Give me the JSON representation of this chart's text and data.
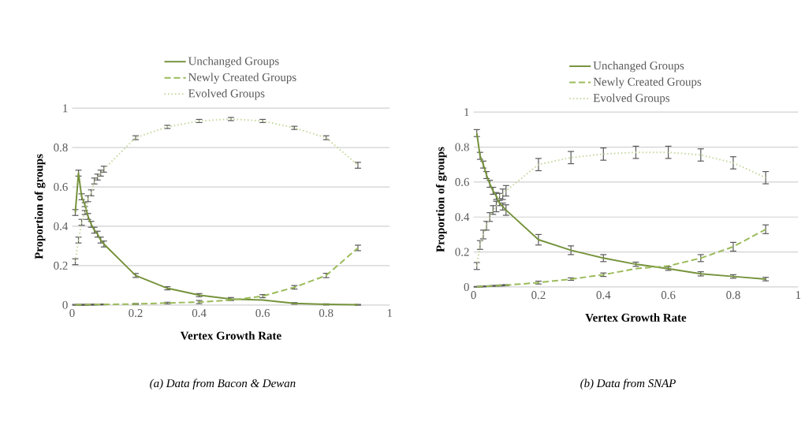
{
  "chart_data": [
    {
      "type": "line",
      "xlabel": "Vertex Growth Rate",
      "ylabel": "Proportion of groups",
      "annotations": [
        "(a) Data from Bacon & Dewan"
      ],
      "x": [
        0.01,
        0.02,
        0.03,
        0.04,
        0.05,
        0.06,
        0.07,
        0.08,
        0.09,
        0.1,
        0.2,
        0.3,
        0.4,
        0.5,
        0.6,
        0.7,
        0.8,
        0.9
      ],
      "series": [
        {
          "name": "Unchanged Groups",
          "color": "#76933c",
          "line_style": "solid",
          "values": [
            0.47,
            0.67,
            0.55,
            0.51,
            0.45,
            0.41,
            0.38,
            0.36,
            0.33,
            0.31,
            0.15,
            0.085,
            0.05,
            0.03,
            0.025,
            0.008,
            0.003,
            0.001
          ],
          "errors": [
            0.015,
            0.015,
            0.015,
            0.01,
            0.015,
            0.015,
            0.015,
            0.015,
            0.015,
            0.015,
            0.01,
            0.008,
            0.008,
            0.008,
            null,
            0.004,
            0.003,
            0.002
          ]
        },
        {
          "name": "Newly Created Groups",
          "color": "#9bbb59",
          "line_style": "dashed",
          "values": [
            0.001,
            0.001,
            0.001,
            0.001,
            0.002,
            0.002,
            0.002,
            0.003,
            0.003,
            0.003,
            0.005,
            0.01,
            0.015,
            0.025,
            0.045,
            0.09,
            0.15,
            0.29
          ],
          "errors": [
            0.002,
            0.002,
            0.002,
            0.002,
            0.002,
            0.002,
            0.002,
            0.002,
            0.002,
            0.002,
            0.003,
            0.004,
            0.008,
            null,
            0.008,
            0.009,
            0.011,
            0.014
          ]
        },
        {
          "name": "Evolved Groups",
          "color": "#c4d79b",
          "line_style": "dotted",
          "values": [
            0.22,
            0.33,
            0.42,
            0.47,
            0.54,
            0.57,
            0.63,
            0.65,
            0.67,
            0.69,
            0.85,
            0.905,
            0.935,
            0.945,
            0.935,
            0.9,
            0.85,
            0.71
          ],
          "errors": [
            0.015,
            0.015,
            0.015,
            0.01,
            0.015,
            0.015,
            0.015,
            0.015,
            0.015,
            0.015,
            0.01,
            0.008,
            0.008,
            0.008,
            0.008,
            0.008,
            0.01,
            0.015
          ]
        }
      ],
      "xlim": [
        0,
        1
      ],
      "ylim": [
        0,
        1
      ],
      "xticks": [
        0,
        0.2,
        0.4,
        0.6,
        0.8,
        1
      ],
      "yticks": [
        0,
        0.2,
        0.4,
        0.6,
        0.8,
        1
      ],
      "grid": "y",
      "legend": "top",
      "marker": "none"
    },
    {
      "type": "line",
      "xlabel": "Vertex Growth Rate",
      "ylabel": "Proportion of groups",
      "annotations": [
        "(b) Data from SNAP"
      ],
      "x": [
        0.01,
        0.02,
        0.03,
        0.04,
        0.05,
        0.06,
        0.07,
        0.08,
        0.09,
        0.1,
        0.2,
        0.3,
        0.4,
        0.5,
        0.6,
        0.7,
        0.8,
        0.9
      ],
      "series": [
        {
          "name": "Unchanged Groups",
          "color": "#76933c",
          "line_style": "solid",
          "values": [
            0.88,
            0.75,
            0.7,
            0.64,
            0.59,
            0.55,
            0.52,
            0.48,
            0.46,
            0.44,
            0.27,
            0.21,
            0.165,
            0.13,
            0.105,
            0.075,
            0.06,
            0.045
          ],
          "errors": [
            0.02,
            0.02,
            0.02,
            0.02,
            0.02,
            0.02,
            0.02,
            0.015,
            0.02,
            0.03,
            0.03,
            0.025,
            0.02,
            0.012,
            0.01,
            0.012,
            0.01,
            0.01
          ]
        },
        {
          "name": "Newly Created Groups",
          "color": "#9bbb59",
          "line_style": "dashed",
          "values": [
            0.001,
            0.002,
            0.003,
            0.004,
            0.005,
            0.006,
            0.007,
            0.008,
            0.009,
            0.01,
            0.025,
            0.045,
            0.07,
            0.105,
            0.12,
            0.165,
            0.23,
            0.33
          ],
          "errors": [
            0.002,
            0.002,
            0.002,
            0.002,
            0.002,
            0.002,
            0.002,
            0.003,
            0.003,
            0.003,
            0.008,
            0.007,
            0.01,
            null,
            null,
            0.02,
            0.025,
            0.025
          ]
        },
        {
          "name": "Evolved Groups",
          "color": "#c4d79b",
          "line_style": "dotted",
          "values": [
            0.12,
            0.24,
            0.3,
            0.35,
            0.4,
            0.44,
            0.46,
            0.52,
            0.53,
            0.55,
            0.7,
            0.74,
            0.76,
            0.77,
            0.77,
            0.755,
            0.71,
            0.625
          ],
          "errors": [
            0.02,
            0.025,
            0.025,
            0.025,
            0.025,
            0.025,
            0.03,
            0.015,
            0.03,
            0.03,
            0.035,
            0.035,
            0.035,
            0.035,
            0.035,
            0.035,
            0.035,
            0.035
          ]
        }
      ],
      "xlim": [
        0,
        1
      ],
      "ylim": [
        0,
        1
      ],
      "xticks": [
        0,
        0.2,
        0.4,
        0.6,
        0.8,
        1
      ],
      "yticks": [
        0,
        0.2,
        0.4,
        0.6,
        0.8,
        1
      ],
      "grid": "y",
      "legend": "top",
      "marker": "none"
    }
  ]
}
